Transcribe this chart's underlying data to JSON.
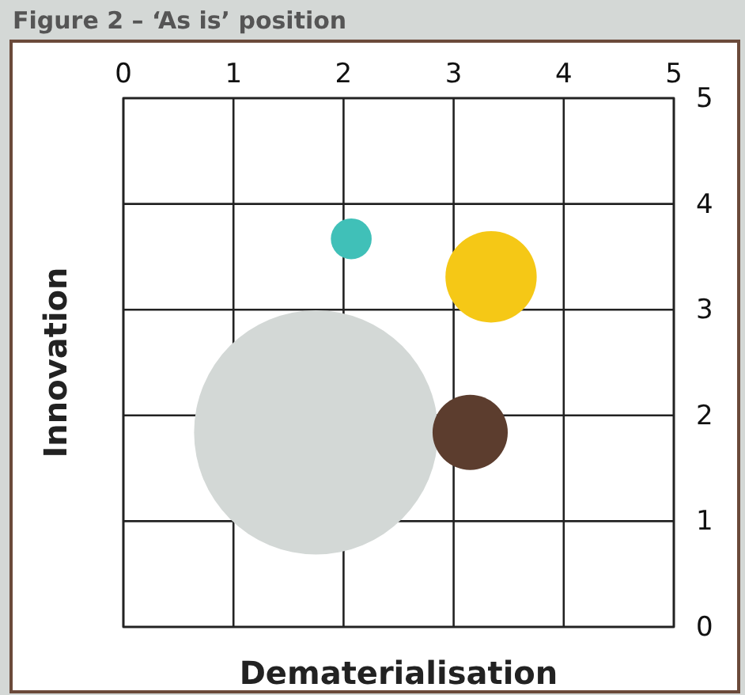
{
  "chart_data": {
    "type": "bubble",
    "title": "Figure 2 – ‘As is’ position",
    "xlabel": "Dematerialisation",
    "ylabel": "Innovation",
    "x": [
      2.07,
      3.34,
      1.75,
      3.15
    ],
    "values": [
      3.67,
      3.31,
      1.84,
      1.84
    ],
    "sizes": [
      0.028,
      0.14,
      1,
      0.095
    ],
    "colors": [
      "#40c0b8",
      "#f5c816",
      "#d3d8d6",
      "#5c3d2e"
    ],
    "xlim": [
      0,
      5
    ],
    "ylim": [
      0,
      5
    ],
    "xticks": [
      0,
      1,
      2,
      3,
      4,
      5
    ],
    "yticks": [
      0,
      1,
      2,
      3,
      4,
      5
    ],
    "grid": true
  }
}
